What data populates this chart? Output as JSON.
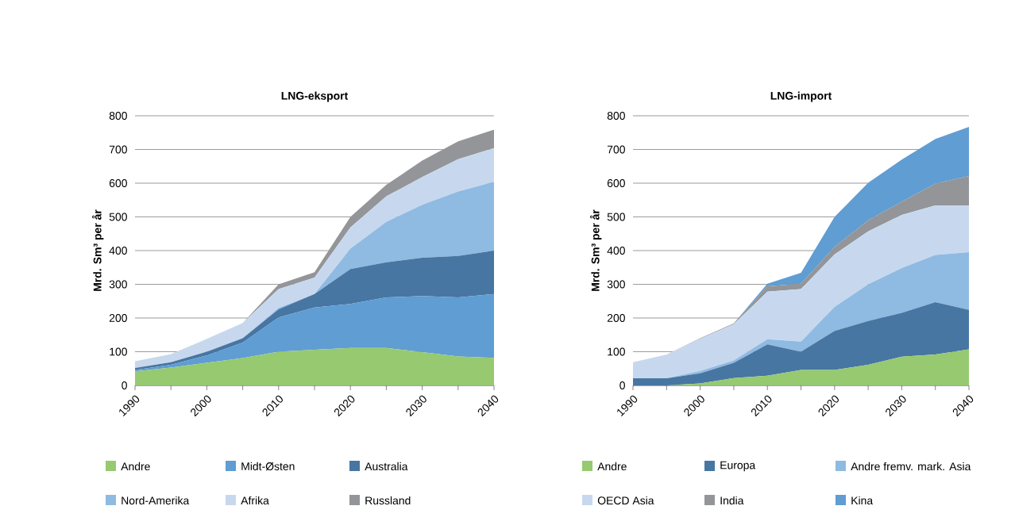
{
  "chart_data": [
    {
      "type": "area",
      "title": "LNG-eksport",
      "ylabel": "Mrd. Sm³ per år",
      "stacked": true,
      "grid": "y",
      "legend": "bottom",
      "x": [
        1990,
        1995,
        2000,
        2005,
        2010,
        2015,
        2020,
        2025,
        2030,
        2035,
        2040
      ],
      "xlim": [
        1990,
        2040
      ],
      "xticks": [
        1990,
        {
          "value": 1995,
          "label": null
        },
        2000,
        {
          "value": 2005,
          "label": null
        },
        2010,
        {
          "value": 2015,
          "label": null
        },
        2020,
        {
          "value": 2025,
          "label": null
        },
        2030,
        {
          "value": 2035,
          "label": null
        },
        2040
      ],
      "ylim": [
        0,
        800
      ],
      "yticks": [
        0,
        100,
        200,
        300,
        400,
        500,
        600,
        700,
        800
      ],
      "series": [
        {
          "name": "Andre",
          "color": "#96c970",
          "values": [
            42,
            53,
            67,
            81,
            100,
            106,
            111,
            111,
            99,
            86,
            82
          ]
        },
        {
          "name": "Midt-Østen",
          "color": "#5f9dd3",
          "values": [
            4,
            8,
            22,
            46,
            102,
            125,
            131,
            150,
            166,
            175,
            189
          ]
        },
        {
          "name": "Australia",
          "color": "#4776a2",
          "values": [
            6,
            8,
            11,
            13,
            24,
            40,
            103,
            104,
            114,
            123,
            129
          ]
        },
        {
          "name": "Nord-Amerika",
          "color": "#8fbae2",
          "values": [
            0,
            0,
            0,
            0,
            4,
            0,
            61,
            120,
            157,
            191,
            204
          ]
        },
        {
          "name": "Afrika",
          "color": "#c7d8ee",
          "values": [
            20,
            24,
            38,
            45,
            56,
            49,
            63,
            76,
            82,
            96,
            100
          ]
        },
        {
          "name": "Russland",
          "color": "#939598",
          "values": [
            0,
            0,
            0,
            0,
            14,
            16,
            31,
            34,
            49,
            53,
            55
          ]
        }
      ]
    },
    {
      "type": "area",
      "title": "LNG-import",
      "ylabel": "Mrd. Sm³ per år",
      "stacked": true,
      "grid": "y",
      "legend": "bottom",
      "x": [
        1990,
        1995,
        2000,
        2005,
        2010,
        2015,
        2020,
        2025,
        2030,
        2035,
        2040
      ],
      "xlim": [
        1990,
        2040
      ],
      "xticks": [
        1990,
        {
          "value": 1995,
          "label": null
        },
        2000,
        {
          "value": 2005,
          "label": null
        },
        2010,
        {
          "value": 2015,
          "label": null
        },
        2020,
        {
          "value": 2025,
          "label": null
        },
        2030,
        {
          "value": 2035,
          "label": null
        },
        2040
      ],
      "ylim": [
        0,
        800
      ],
      "yticks": [
        0,
        100,
        200,
        300,
        400,
        500,
        600,
        700,
        800
      ],
      "series": [
        {
          "name": "Andre",
          "color": "#96c970",
          "values": [
            0,
            0,
            6,
            22,
            29,
            46,
            46,
            61,
            85,
            92,
            107
          ]
        },
        {
          "name": "Europa",
          "color": "#4776a2",
          "values": [
            21,
            21,
            30,
            45,
            93,
            54,
            116,
            130,
            130,
            155,
            117
          ]
        },
        {
          "name": "Andre fremv. mark. Asia",
          "color": "#8fbae2",
          "values": [
            0,
            0,
            7,
            7,
            15,
            30,
            71,
            109,
            133,
            140,
            171
          ]
        },
        {
          "name": "OECD Asia",
          "color": "#c7d8ee",
          "values": [
            48,
            71,
            95,
            108,
            141,
            156,
            156,
            157,
            158,
            147,
            139
          ]
        },
        {
          "name": "India",
          "color": "#939598",
          "values": [
            0,
            0,
            2,
            2,
            16,
            16,
            22,
            33,
            39,
            65,
            87
          ]
        },
        {
          "name": "Kina",
          "color": "#5f9dd3",
          "values": [
            0,
            0,
            0,
            0,
            8,
            32,
            89,
            111,
            125,
            132,
            146
          ]
        }
      ]
    }
  ]
}
